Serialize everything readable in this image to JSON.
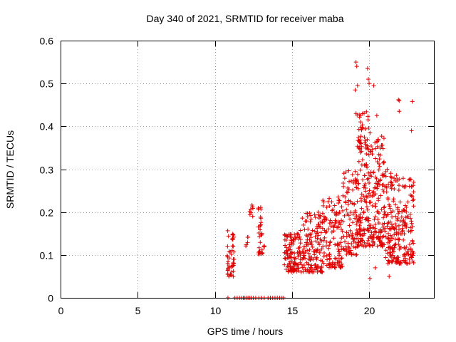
{
  "chart_data": {
    "type": "scatter",
    "title": "Day 340 of 2021, SRMTID for receiver maba",
    "xlabel": "GPS time / hours",
    "ylabel": "SRMTID / TECUs",
    "xlim": [
      0,
      24.2
    ],
    "ylim": [
      0,
      0.6
    ],
    "xticks": [
      0,
      5,
      10,
      15,
      20
    ],
    "yticks": [
      0,
      0.1,
      0.2,
      0.3,
      0.4,
      0.5,
      0.6
    ],
    "xtick_labels": [
      "0",
      "5",
      "10",
      "15",
      "20"
    ],
    "ytick_labels": [
      "0",
      "0.1",
      "0.2",
      "0.3",
      "0.4",
      "0.5",
      "0.6"
    ],
    "grid": true,
    "marker": "+",
    "color": "#e00000",
    "clusters": [
      {
        "x_range": [
          10.8,
          11.25
        ],
        "y_range": [
          0.05,
          0.16
        ],
        "count": 45
      },
      {
        "x_range": [
          12.0,
          12.2
        ],
        "y_range": [
          0.12,
          0.16
        ],
        "count": 5
      },
      {
        "x_range": [
          12.2,
          12.5
        ],
        "y_range": [
          0.19,
          0.225
        ],
        "count": 8
      },
      {
        "x_range": [
          12.8,
          13.1
        ],
        "y_range": [
          0.1,
          0.22
        ],
        "count": 30
      },
      {
        "x_range": [
          13.1,
          13.3
        ],
        "y_range": [
          0.118,
          0.122
        ],
        "count": 3
      },
      {
        "x_range": [
          14.5,
          15.5
        ],
        "y_range": [
          0.06,
          0.15
        ],
        "count": 110
      },
      {
        "x_range": [
          15.5,
          17.0
        ],
        "y_range": [
          0.06,
          0.2
        ],
        "count": 150
      },
      {
        "x_range": [
          17.0,
          18.3
        ],
        "y_range": [
          0.07,
          0.24
        ],
        "count": 120
      },
      {
        "x_range": [
          18.3,
          19.2
        ],
        "y_range": [
          0.1,
          0.3
        ],
        "count": 90
      },
      {
        "x_range": [
          19.2,
          20.1
        ],
        "y_range": [
          0.12,
          0.44
        ],
        "count": 170
      },
      {
        "x_range": [
          20.1,
          21.0
        ],
        "y_range": [
          0.12,
          0.38
        ],
        "count": 130
      },
      {
        "x_range": [
          21.0,
          21.8
        ],
        "y_range": [
          0.08,
          0.3
        ],
        "count": 110
      },
      {
        "x_range": [
          21.8,
          22.9
        ],
        "y_range": [
          0.08,
          0.28
        ],
        "count": 130
      }
    ],
    "outliers": [
      {
        "x": 19.15,
        "y": 0.55
      },
      {
        "x": 19.2,
        "y": 0.54
      },
      {
        "x": 19.1,
        "y": 0.485
      },
      {
        "x": 19.25,
        "y": 0.495
      },
      {
        "x": 19.15,
        "y": 0.43
      },
      {
        "x": 19.9,
        "y": 0.535
      },
      {
        "x": 19.95,
        "y": 0.51
      },
      {
        "x": 20.0,
        "y": 0.5
      },
      {
        "x": 20.3,
        "y": 0.495
      },
      {
        "x": 21.9,
        "y": 0.462
      },
      {
        "x": 21.95,
        "y": 0.46
      },
      {
        "x": 21.95,
        "y": 0.435
      },
      {
        "x": 22.8,
        "y": 0.458
      },
      {
        "x": 22.75,
        "y": 0.39
      },
      {
        "x": 20.05,
        "y": 0.045
      },
      {
        "x": 20.5,
        "y": 0.425
      },
      {
        "x": 22.7,
        "y": 0.1
      },
      {
        "x": 20.4,
        "y": 0.07
      },
      {
        "x": 21.3,
        "y": 0.05
      }
    ],
    "zero_points": [
      10.85,
      11.3,
      11.45,
      11.6,
      11.75,
      11.85,
      11.95,
      12.05,
      12.15,
      12.25,
      12.35,
      12.5,
      12.65,
      12.85,
      13.0,
      13.2,
      13.45,
      13.6,
      13.75,
      13.9,
      14.05,
      14.2,
      14.35,
      14.45
    ]
  }
}
